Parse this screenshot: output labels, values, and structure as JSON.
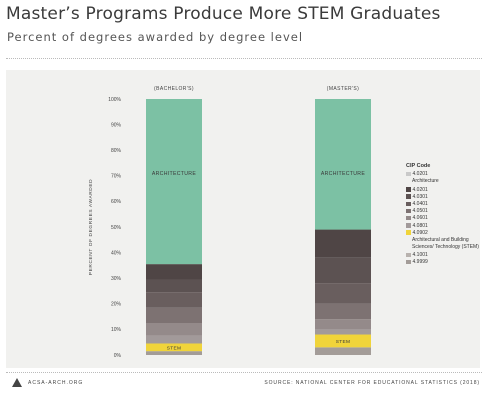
{
  "header": {
    "title": "Master’s Programs Produce More STEM Graduates",
    "subtitle": "Percent of degrees awarded by degree level"
  },
  "footer": {
    "logo_text": "ACSA-ARCH.ORG",
    "source": "SOURCE: NATIONAL CENTER FOR EDUCATIONAL STATISTICS (2018)"
  },
  "colors": {
    "architecture": "#7cc1a4",
    "stem": "#f0d43a",
    "background": "#f1f1ef"
  },
  "chart_data": {
    "type": "bar",
    "stacked": true,
    "ylabel": "PERCENT OF DEGREES AWARDED",
    "ylim": [
      0,
      100
    ],
    "yticks": [
      0,
      10,
      20,
      30,
      40,
      50,
      60,
      70,
      80,
      90,
      100
    ],
    "ytick_suffix": "%",
    "categories": [
      "BACHELOR'S",
      "MASTER'S"
    ],
    "series": [
      {
        "code": "4.0299",
        "color": "#a39c98",
        "values": [
          1.5,
          3
        ]
      },
      {
        "code": "4.0902",
        "color": "#f0d43a",
        "values": [
          3,
          5
        ],
        "bar_label": "STEM"
      },
      {
        "code": "4.0801",
        "color": "#a29a9a",
        "values": [
          3,
          2
        ]
      },
      {
        "code": "4.0601",
        "color": "#948a8a",
        "values": [
          5,
          4
        ]
      },
      {
        "code": "4.0501",
        "color": "#7d7272",
        "values": [
          6,
          6
        ]
      },
      {
        "code": "4.0401",
        "color": "#695e5e",
        "values": [
          6,
          8
        ]
      },
      {
        "code": "4.0301",
        "color": "#5c5252",
        "values": [
          5,
          10
        ]
      },
      {
        "code": "4.0201",
        "color": "#4f4545",
        "values": [
          6,
          11
        ]
      },
      {
        "code": "4.0201",
        "color": "#8a8787",
        "values": [
          0,
          0
        ]
      },
      {
        "code": "4.0201",
        "color": "#7cc1a4",
        "values": [
          64.5,
          51
        ],
        "bar_label": "ARCHITECTURE"
      }
    ],
    "legend": {
      "title": "CIP Code",
      "position": "right",
      "items": [
        {
          "code": "4.0201",
          "color": "#c9c9c9",
          "desc": "Architecture"
        },
        {
          "code": "4.0201",
          "color": "#4f4545"
        },
        {
          "code": "4.0301",
          "color": "#5c5252"
        },
        {
          "code": "4.0401",
          "color": "#695e5e"
        },
        {
          "code": "4.0501",
          "color": "#7d7272"
        },
        {
          "code": "4.0601",
          "color": "#948a8a"
        },
        {
          "code": "4.0801",
          "color": "#a29a9a"
        },
        {
          "code": "4.0902",
          "color": "#f0d43a",
          "desc": "Architectural and Building Sciences/ Technology (STEM)"
        },
        {
          "code": "4.1001",
          "color": "#b8b2ae"
        },
        {
          "code": "4.9999",
          "color": "#a39c98"
        }
      ]
    }
  }
}
